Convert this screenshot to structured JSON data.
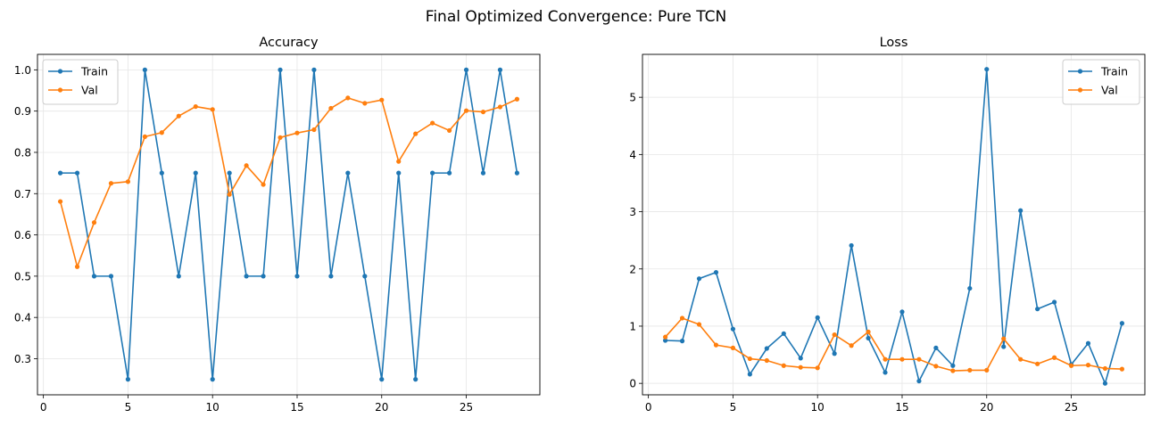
{
  "suptitle": "Final Optimized Convergence: Pure TCN",
  "colors": {
    "train": "#1f77b4",
    "val": "#ff7f0e",
    "grid": "#e6e6e6",
    "axis": "#000000"
  },
  "chart_data": [
    {
      "type": "line",
      "title": "Accuracy",
      "xlabel": "",
      "ylabel": "",
      "xlim": [
        -0.35,
        29.35
      ],
      "ylim": [
        0.2125,
        1.0375
      ],
      "xticks": [
        0,
        5,
        10,
        15,
        20,
        25
      ],
      "yticks": [
        0.3,
        0.4,
        0.5,
        0.6,
        0.7,
        0.8,
        0.9,
        1.0
      ],
      "ytick_labels": [
        "0.3",
        "0.4",
        "0.5",
        "0.6",
        "0.7",
        "0.8",
        "0.9",
        "1.0"
      ],
      "grid": true,
      "legend": "upper left",
      "x": [
        1,
        2,
        3,
        4,
        5,
        6,
        7,
        8,
        9,
        10,
        11,
        12,
        13,
        14,
        15,
        16,
        17,
        18,
        19,
        20,
        21,
        22,
        23,
        24,
        25,
        26,
        27,
        28
      ],
      "series": [
        {
          "name": "Train",
          "color": "#1f77b4",
          "values": [
            0.75,
            0.75,
            0.5,
            0.5,
            0.25,
            1.0,
            0.75,
            0.5,
            0.75,
            0.25,
            0.75,
            0.5,
            0.5,
            1.0,
            0.5,
            1.0,
            0.5,
            0.75,
            0.5,
            0.25,
            0.75,
            0.25,
            0.75,
            0.75,
            1.0,
            0.75,
            1.0,
            0.75
          ]
        },
        {
          "name": "Val",
          "color": "#ff7f0e",
          "values": [
            0.681,
            0.523,
            0.63,
            0.725,
            0.729,
            0.838,
            0.848,
            0.888,
            0.911,
            0.904,
            0.698,
            0.768,
            0.722,
            0.836,
            0.847,
            0.855,
            0.907,
            0.932,
            0.919,
            0.927,
            0.778,
            0.845,
            0.871,
            0.853,
            0.901,
            0.898,
            0.91,
            0.929
          ]
        }
      ]
    },
    {
      "type": "line",
      "title": "Loss",
      "xlabel": "",
      "ylabel": "",
      "xlim": [
        -0.35,
        29.35
      ],
      "ylim": [
        -0.2,
        5.75
      ],
      "xticks": [
        0,
        5,
        10,
        15,
        20,
        25
      ],
      "yticks": [
        0,
        1,
        2,
        3,
        4,
        5
      ],
      "ytick_labels": [
        "0",
        "1",
        "2",
        "3",
        "4",
        "5"
      ],
      "grid": true,
      "legend": "upper right",
      "x": [
        1,
        2,
        3,
        4,
        5,
        6,
        7,
        8,
        9,
        10,
        11,
        12,
        13,
        14,
        15,
        16,
        17,
        18,
        19,
        20,
        21,
        22,
        23,
        24,
        25,
        26,
        27,
        28
      ],
      "series": [
        {
          "name": "Train",
          "color": "#1f77b4",
          "values": [
            0.75,
            0.74,
            1.83,
            1.94,
            0.95,
            0.16,
            0.61,
            0.87,
            0.44,
            1.15,
            0.52,
            2.41,
            0.79,
            0.19,
            1.25,
            0.04,
            0.62,
            0.31,
            1.66,
            5.49,
            0.64,
            3.02,
            1.3,
            1.42,
            0.33,
            0.7,
            0.0,
            1.05
          ]
        },
        {
          "name": "Val",
          "color": "#ff7f0e",
          "values": [
            0.81,
            1.14,
            1.03,
            0.67,
            0.62,
            0.43,
            0.4,
            0.31,
            0.28,
            0.27,
            0.85,
            0.66,
            0.9,
            0.42,
            0.42,
            0.42,
            0.3,
            0.22,
            0.23,
            0.23,
            0.78,
            0.42,
            0.34,
            0.45,
            0.31,
            0.32,
            0.26,
            0.25
          ]
        }
      ]
    }
  ]
}
